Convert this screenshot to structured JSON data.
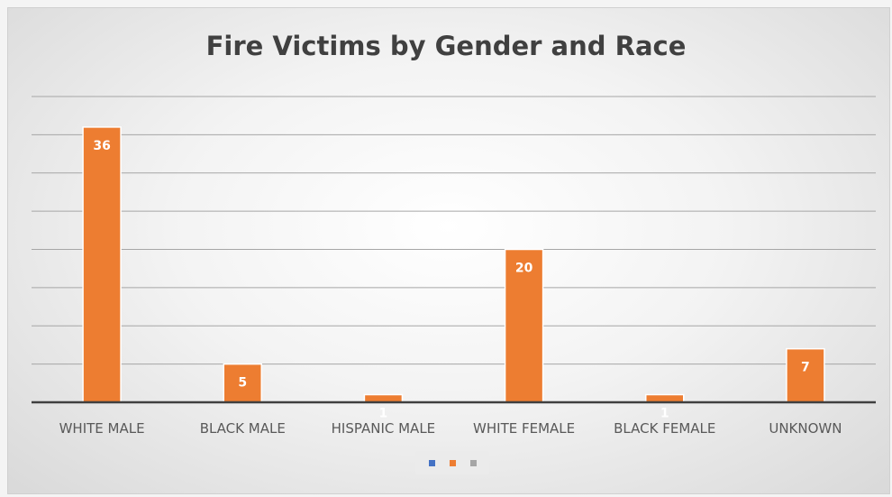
{
  "chart_data": {
    "type": "bar",
    "title": "Fire Victims by Gender and Race",
    "categories": [
      "WHITE MALE",
      "BLACK MALE",
      "HISPANIC MALE",
      "WHITE FEMALE",
      "BLACK FEMALE",
      "UNKNOWN"
    ],
    "series": [
      {
        "values": [
          36,
          5,
          1,
          20,
          1,
          7
        ],
        "color": "#ed7d31"
      }
    ],
    "data_labels": [
      "36",
      "5",
      "1",
      "20",
      "1",
      "7"
    ],
    "ylim": [
      0,
      40
    ],
    "grid": true,
    "y_tick_labels_shown": false,
    "legend": {
      "placement": "bottom",
      "swatches": [
        {
          "color": "#4472c4"
        },
        {
          "color": "#ed7d31"
        },
        {
          "color": "#a5a5a5"
        }
      ]
    },
    "colors": {
      "bar": "#ed7d31",
      "bar_border": "#ffffff",
      "grid": "#a6a6a6",
      "axis": "#404040",
      "label_text": "#ffffff",
      "category_text": "#595959"
    }
  }
}
